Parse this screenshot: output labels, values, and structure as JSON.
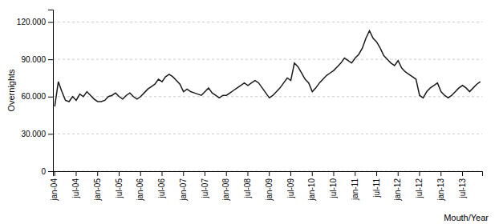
{
  "chart_data": {
    "type": "line",
    "xlabel": "Mouth/Year",
    "ylabel": "Overnights",
    "color": "#1a1a1a",
    "grid": true,
    "ylim": [
      0,
      130000
    ],
    "yticks": [
      0,
      {
        "value": 30000,
        "label": "30.000"
      },
      {
        "value": 60000,
        "label": "60.000"
      },
      {
        "value": 90000,
        "label": "90.000"
      },
      {
        "value": 120000,
        "label": "120.000"
      }
    ],
    "categories": [
      "jan-04",
      null,
      null,
      null,
      null,
      null,
      "jul-04",
      null,
      null,
      null,
      null,
      null,
      "jan-05",
      null,
      null,
      null,
      null,
      null,
      "jul-05",
      null,
      null,
      null,
      null,
      null,
      "jan-06",
      null,
      null,
      null,
      null,
      null,
      "jul-06",
      null,
      null,
      null,
      null,
      null,
      "jan-07",
      null,
      null,
      null,
      null,
      null,
      "jul-07",
      null,
      null,
      null,
      null,
      null,
      "jan-08",
      null,
      null,
      null,
      null,
      null,
      "jul-08",
      null,
      null,
      null,
      null,
      null,
      "jan-09",
      null,
      null,
      null,
      null,
      null,
      "jul-09",
      null,
      null,
      null,
      null,
      null,
      "jan-10",
      null,
      null,
      null,
      null,
      null,
      "jul-10",
      null,
      null,
      null,
      null,
      null,
      "jan-11",
      null,
      null,
      null,
      null,
      null,
      "jul-11",
      null,
      null,
      null,
      null,
      null,
      "jan-12",
      null,
      null,
      null,
      null,
      null,
      "jul-12",
      null,
      null,
      null,
      null,
      null,
      "jan-13",
      null,
      null,
      null,
      null,
      null,
      "jul-13",
      null,
      null,
      null,
      null,
      null
    ],
    "values": [
      52000,
      72000,
      64000,
      57000,
      56000,
      60000,
      57000,
      62000,
      60000,
      64000,
      61000,
      58000,
      56000,
      56000,
      57000,
      60000,
      61000,
      63000,
      60000,
      58000,
      61000,
      63000,
      60000,
      58000,
      60000,
      63000,
      66000,
      68000,
      70000,
      74000,
      72000,
      76000,
      78000,
      76000,
      73000,
      70000,
      64000,
      66000,
      64000,
      63000,
      62000,
      61000,
      64000,
      67000,
      63000,
      61000,
      59000,
      61000,
      61000,
      63000,
      65000,
      67000,
      69000,
      71000,
      69000,
      71000,
      73000,
      71000,
      67000,
      63000,
      59000,
      61000,
      64000,
      67000,
      71000,
      75000,
      73000,
      87000,
      84000,
      79000,
      74000,
      71000,
      64000,
      67000,
      71000,
      74000,
      77000,
      79000,
      81000,
      84000,
      87000,
      91000,
      89000,
      87000,
      91000,
      94000,
      99000,
      107000,
      113000,
      107000,
      104000,
      99000,
      93000,
      90000,
      87000,
      85000,
      89000,
      83000,
      80000,
      78000,
      76000,
      74000,
      61000,
      59000,
      64000,
      67000,
      69000,
      71000,
      64000,
      61000,
      59000,
      61000,
      64000,
      67000,
      69000,
      67000,
      64000,
      67000,
      70000,
      72000
    ]
  }
}
